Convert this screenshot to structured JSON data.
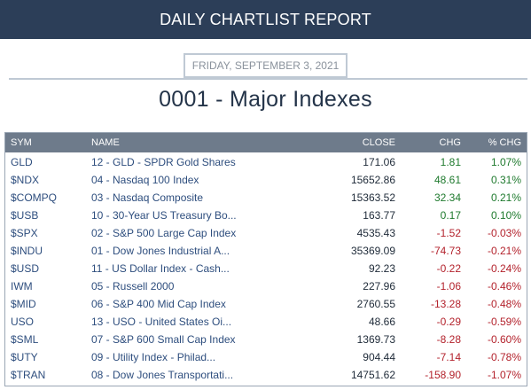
{
  "header": {
    "title": "DAILY CHARTLIST REPORT"
  },
  "report": {
    "date": "FRIDAY, SEPTEMBER 3, 2021",
    "title": "0001 - Major Indexes"
  },
  "table": {
    "columns": [
      "SYM",
      "NAME",
      "CLOSE",
      "CHG",
      "% CHG"
    ],
    "rows": [
      {
        "sym": "GLD",
        "name": "12 - GLD - SPDR Gold Shares",
        "close": "171.06",
        "chg": "1.81",
        "pct": "1.07%",
        "dir": "pos"
      },
      {
        "sym": "$NDX",
        "name": "04 - Nasdaq 100 Index",
        "close": "15652.86",
        "chg": "48.61",
        "pct": "0.31%",
        "dir": "pos"
      },
      {
        "sym": "$COMPQ",
        "name": "03 - Nasdaq Composite",
        "close": "15363.52",
        "chg": "32.34",
        "pct": "0.21%",
        "dir": "pos"
      },
      {
        "sym": "$USB",
        "name": "10 - 30-Year US Treasury Bo...",
        "close": "163.77",
        "chg": "0.17",
        "pct": "0.10%",
        "dir": "pos"
      },
      {
        "sym": "$SPX",
        "name": "02 - S&P 500 Large Cap Index",
        "close": "4535.43",
        "chg": "-1.52",
        "pct": "-0.03%",
        "dir": "neg"
      },
      {
        "sym": "$INDU",
        "name": "01 - Dow Jones Industrial A...",
        "close": "35369.09",
        "chg": "-74.73",
        "pct": "-0.21%",
        "dir": "neg"
      },
      {
        "sym": "$USD",
        "name": "11 - US Dollar Index - Cash...",
        "close": "92.23",
        "chg": "-0.22",
        "pct": "-0.24%",
        "dir": "neg"
      },
      {
        "sym": "IWM",
        "name": "05 - Russell 2000",
        "close": "227.96",
        "chg": "-1.06",
        "pct": "-0.46%",
        "dir": "neg"
      },
      {
        "sym": "$MID",
        "name": "06 - S&P 400 Mid Cap Index",
        "close": "2760.55",
        "chg": "-13.28",
        "pct": "-0.48%",
        "dir": "neg"
      },
      {
        "sym": "USO",
        "name": "13 - USO - United States Oi...",
        "close": "48.66",
        "chg": "-0.29",
        "pct": "-0.59%",
        "dir": "neg"
      },
      {
        "sym": "$SML",
        "name": "07 - S&P 600 Small Cap Index",
        "close": "1369.73",
        "chg": "-8.28",
        "pct": "-0.60%",
        "dir": "neg"
      },
      {
        "sym": "$UTY",
        "name": "09 - Utility Index - Philad...",
        "close": "904.44",
        "chg": "-7.14",
        "pct": "-0.78%",
        "dir": "neg"
      },
      {
        "sym": "$TRAN",
        "name": "08 - Dow Jones Transportati...",
        "close": "14751.62",
        "chg": "-158.90",
        "pct": "-1.07%",
        "dir": "neg"
      }
    ]
  },
  "colors": {
    "header_bg": "#2c3e58",
    "table_header_bg": "#6e7b8b",
    "positive": "#1f7a2e",
    "negative": "#b3222c",
    "link": "#2e4e7e"
  }
}
